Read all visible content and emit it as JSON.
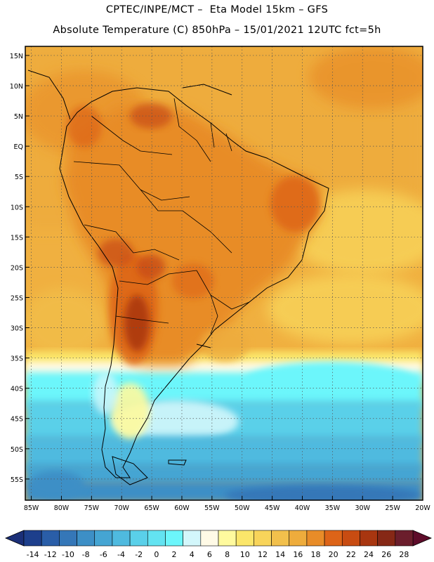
{
  "title": {
    "line1": "CPTEC/INPE/MCT –  Eta Model 15km – GFS",
    "line2": "Absolute Temperature (C) 850hPa – 15/01/2021 12UTC fct=5h"
  },
  "map": {
    "lat_labels": [
      "15N",
      "10N",
      "5N",
      "EQ",
      "5S",
      "10S",
      "15S",
      "20S",
      "25S",
      "30S",
      "35S",
      "40S",
      "45S",
      "50S",
      "55S"
    ],
    "lat_values": [
      15,
      10,
      5,
      0,
      -5,
      -10,
      -15,
      -20,
      -25,
      -30,
      -35,
      -40,
      -45,
      -50,
      -55
    ],
    "lon_labels": [
      "85W",
      "80W",
      "75W",
      "70W",
      "65W",
      "60W",
      "55W",
      "50W",
      "45W",
      "40W",
      "35W",
      "30W",
      "25W",
      "20W"
    ],
    "lon_values": [
      -85,
      -80,
      -75,
      -70,
      -65,
      -60,
      -55,
      -50,
      -45,
      -40,
      -35,
      -30,
      -25,
      -20
    ],
    "lat_range": [
      -58.5,
      16.5
    ],
    "lon_range": [
      -86,
      -20
    ],
    "gridlines": "dotted"
  },
  "colorbar": {
    "labels": [
      "-14",
      "-12",
      "-10",
      "-8",
      "-6",
      "-4",
      "-2",
      "0",
      "2",
      "4",
      "6",
      "8",
      "10",
      "12",
      "14",
      "16",
      "18",
      "20",
      "22",
      "24",
      "26",
      "28"
    ],
    "colors": [
      "#1d3f8c",
      "#2a5ea8",
      "#3577b8",
      "#3d8fc6",
      "#45a5d3",
      "#4fbadf",
      "#5ad0e9",
      "#63e3f1",
      "#6cf6fb",
      "#d3f7fb",
      "#fffae6",
      "#fffa9e",
      "#fbe66a",
      "#f8d45a",
      "#f2c04c",
      "#eeac3c",
      "#e88c28",
      "#dd6418",
      "#c84c12",
      "#a83610",
      "#862816",
      "#6b1e2c"
    ],
    "under_color": "#1b2f78",
    "over_color": "#5e0c2a"
  }
}
